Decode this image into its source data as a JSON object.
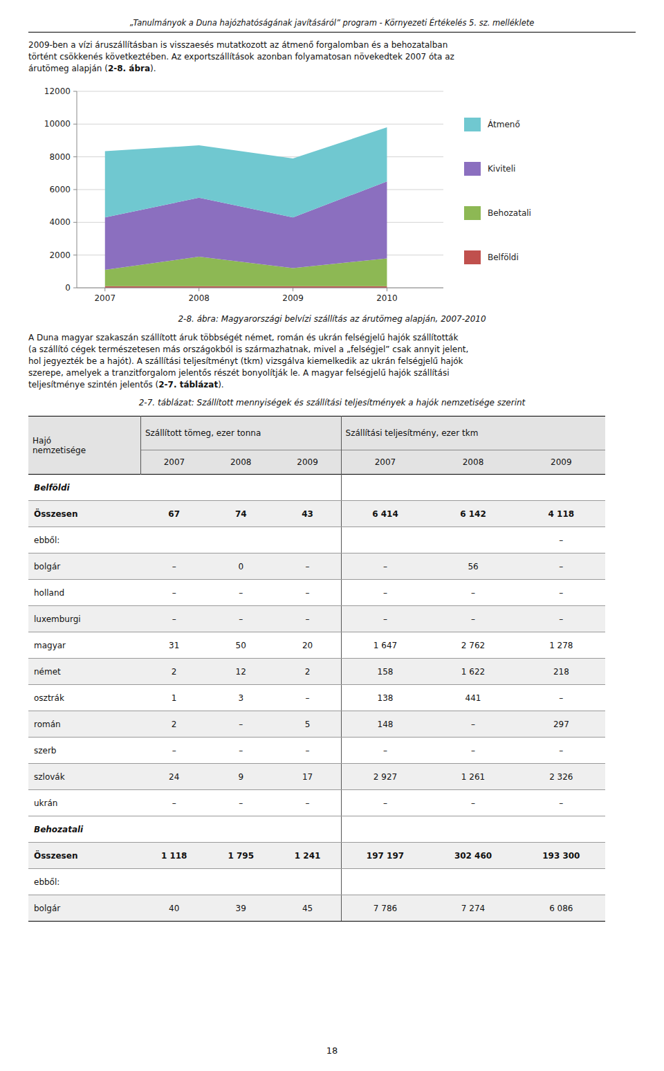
{
  "header_text": "„Tanulmányok a Duna hajózhatóságának javításáról” program - Környezeti Értékelés 5. sz. melléklete",
  "paragraphs": [
    [
      [
        {
          "text": "2009-ben a vízi áruszállításban is visszaesés mutatkozott az átmenő forgalomban és a behozatalban"
        }
      ],
      [
        {
          "text": "történt csökkenés következtében. Az exportszállítások azonban folyamatosan növekedtek 2007 óta az"
        }
      ],
      [
        {
          "text": "árutömeg alapján ("
        },
        {
          "text": "2-8. ábra",
          "bold": true
        },
        {
          "text": ")."
        }
      ]
    ],
    [
      [
        {
          "text": "A Duna magyar szakaszán szállított áruk többségét német, román és ukrán felségjelű hajók szállították"
        }
      ],
      [
        {
          "text": "(a szállító cégek természetesen más országokból is származhatnak, mivel a „felségjel” csak annyit jelent,"
        }
      ],
      [
        {
          "text": "hol jegyezték be a hajót). A szállítási teljesítményt (tkm) vizsgálva kiemelkedik az ukrán felségjelű hajók"
        }
      ],
      [
        {
          "text": "szerepe, amelyek a tranzitforgalom jelentős részét bonyolítják le. A magyar felségjelű hajók szállítási"
        }
      ],
      [
        {
          "text": "teljesítménye szintén jelentős ("
        },
        {
          "text": "2-7. táblázat",
          "bold": true
        },
        {
          "text": ")."
        }
      ]
    ]
  ],
  "chart_data": {
    "type": "area",
    "stacked": true,
    "x": [
      2007,
      2008,
      2009,
      2010
    ],
    "xlim": [
      2006.7,
      2010.6
    ],
    "xticks": [
      2007,
      2008,
      2009,
      2010
    ],
    "ylim": [
      0,
      12000
    ],
    "yticks": [
      0,
      2000,
      4000,
      6000,
      8000,
      10000,
      12000
    ],
    "grid": true,
    "legend": "right",
    "series": [
      {
        "name": "Belföldi",
        "color": "#c0504d",
        "values": [
          100,
          100,
          100,
          100
        ]
      },
      {
        "name": "Behozatali",
        "color": "#8db854",
        "values": [
          1000,
          1800,
          1100,
          1700
        ]
      },
      {
        "name": "Kiviteli",
        "color": "#8b6fbf",
        "values": [
          3200,
          3600,
          3100,
          4700
        ]
      },
      {
        "name": "Átmenő",
        "color": "#70c8d0",
        "values": [
          4050,
          3200,
          3600,
          3300
        ]
      }
    ]
  },
  "chart_caption": "2-8. ábra: Magyarországi belvízi szállítás az árutömeg alapján, 2007-2010",
  "table_caption": "2-7. táblázat: Szállított mennyiségek és szállítási teljesítmények a hajók nemzetisége szerint",
  "table": {
    "row_header": "Hajó\nnemzetisége",
    "groups": [
      {
        "label": "Szállított tömeg, ezer tonna",
        "years": [
          "2007",
          "2008",
          "2009"
        ]
      },
      {
        "label": "Szállítási teljesítmény, ezer tkm",
        "years": [
          "2007",
          "2008",
          "2009"
        ]
      }
    ],
    "rows": [
      {
        "label": "Belföldi",
        "section": true
      },
      {
        "label": "Összesen",
        "bold": true,
        "values": [
          "67",
          "74",
          "43",
          "6 414",
          "6 142",
          "4 118"
        ]
      },
      {
        "label": "ebből:",
        "values": [
          null,
          null,
          null,
          null,
          null,
          "–"
        ]
      },
      {
        "label": "bolgár",
        "values": [
          "–",
          "0",
          "–",
          "–",
          "56",
          "–"
        ]
      },
      {
        "label": "holland",
        "values": [
          "–",
          "–",
          "–",
          "–",
          "–",
          "–"
        ]
      },
      {
        "label": "luxemburgi",
        "values": [
          "–",
          "–",
          "–",
          "–",
          "–",
          "–"
        ]
      },
      {
        "label": "magyar",
        "values": [
          "31",
          "50",
          "20",
          "1 647",
          "2 762",
          "1 278"
        ]
      },
      {
        "label": "német",
        "values": [
          "2",
          "12",
          "2",
          "158",
          "1 622",
          "218"
        ]
      },
      {
        "label": "osztrák",
        "values": [
          "1",
          "3",
          "–",
          "138",
          "441",
          "–"
        ]
      },
      {
        "label": "román",
        "values": [
          "2",
          "–",
          "5",
          "148",
          "–",
          "297"
        ]
      },
      {
        "label": "szerb",
        "values": [
          "–",
          "–",
          "–",
          "–",
          "–",
          "–"
        ]
      },
      {
        "label": "szlovák",
        "values": [
          "24",
          "9",
          "17",
          "2 927",
          "1 261",
          "2 326"
        ]
      },
      {
        "label": "ukrán",
        "values": [
          "–",
          "–",
          "–",
          "–",
          "–",
          "–"
        ]
      },
      {
        "label": "Behozatali",
        "section": true
      },
      {
        "label": "Összesen",
        "bold": true,
        "values": [
          "1 118",
          "1 795",
          "1 241",
          "197 197",
          "302 460",
          "193 300"
        ]
      },
      {
        "label": "ebből:",
        "values": [
          null,
          null,
          null,
          null,
          null,
          null
        ]
      },
      {
        "label": "bolgár",
        "values": [
          "40",
          "39",
          "45",
          "7 786",
          "7 274",
          "6 086"
        ]
      }
    ]
  },
  "page_number": "18"
}
